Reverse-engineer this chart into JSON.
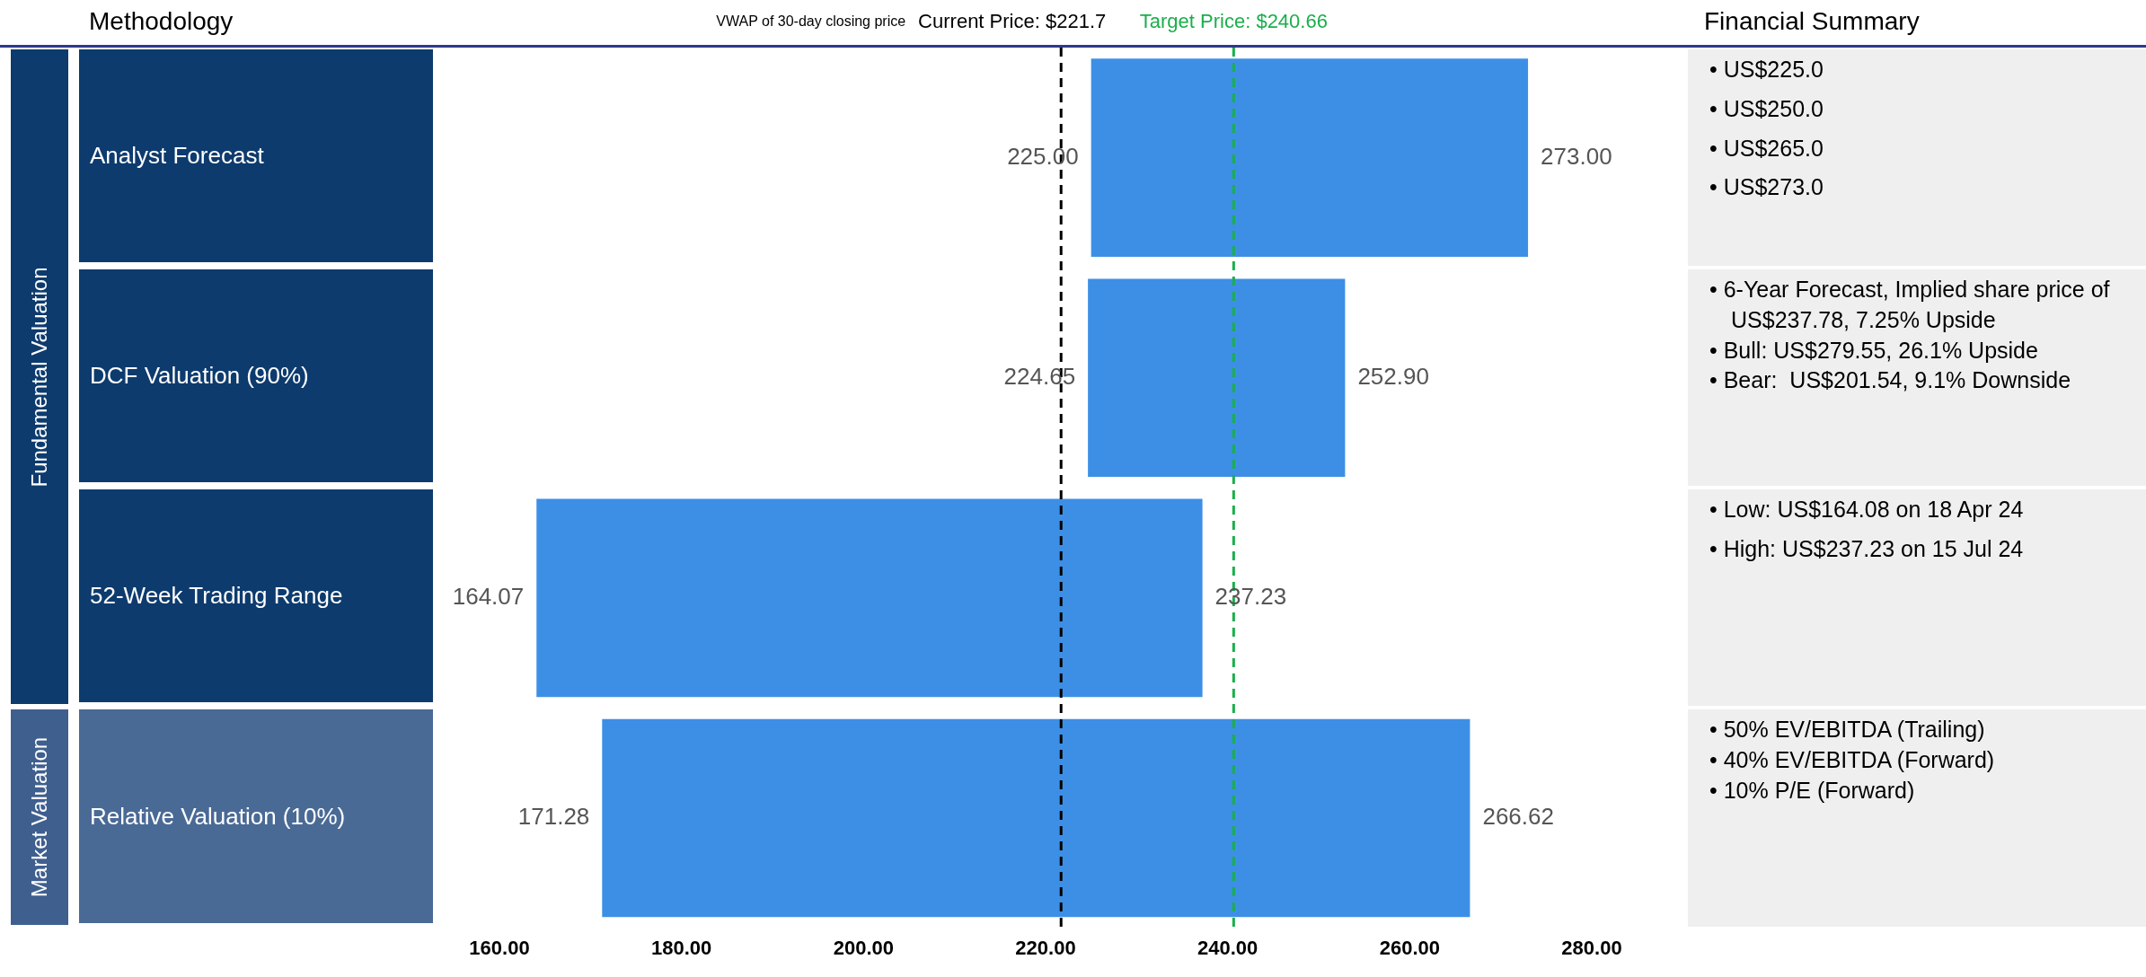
{
  "chart_data": {
    "type": "bar",
    "orientation": "horizontal",
    "categories": [
      "Analyst Forecast",
      "DCF Valuation (90%)",
      "52-Week Trading Range",
      "Relative Valuation (10%)"
    ],
    "base": [
      225.0,
      224.65,
      164.07,
      171.28
    ],
    "values": [
      48.0,
      28.25,
      73.16,
      95.34
    ],
    "value_labels": [
      "273.00",
      "252.90",
      "237.23",
      "266.62"
    ],
    "color": "#3d8fe6",
    "xlim": [
      160,
      280
    ],
    "xticks": [
      {
        "value": 160,
        "label": "160.00"
      },
      {
        "value": 180,
        "label": "180.00"
      },
      {
        "value": 200,
        "label": "200.00"
      },
      {
        "value": 220,
        "label": "220.00"
      },
      {
        "value": 240,
        "label": "240.00"
      },
      {
        "value": 260,
        "label": "260.00"
      },
      {
        "value": 280,
        "label": "280.00"
      }
    ],
    "tick_labels": "x",
    "grid": false,
    "legend": false,
    "ref_lines": [
      {
        "axis": "x",
        "value": 221.7,
        "label": "Current Price: $221.7",
        "color": "#000000",
        "line_style": "dashed"
      },
      {
        "axis": "x",
        "value": 240.66,
        "label": "Target Price: $240.66",
        "color": "#1aaf4b",
        "line_style": "dashed"
      }
    ],
    "annotations": [
      "Methodology",
      "Financial Summary",
      "VWAP of 30-day closing price",
      "Fundamental Valuation",
      "Market Valuation",
      "• US$225.0\n• US$250.0\n• US$265.0\n• US$273.0",
      "• 6-Year Forecast, Implied share price of US$237.78, 7.25% Upside\n• Bull: US$279.55, 26.1% Upside\n• Bear:  US$201.54, 9.1% Downside",
      "• Low: US$164.08 on 18 Apr 24\n• High: US$237.23 on 15 Jul 24",
      "• 50% EV/EBITDA (Trailing)\n• 40% EV/EBITDA (Forward)\n• 10% P/E (Forward)",
      {
        "text": "225.00",
        "x": 225.0,
        "y": "Analyst Forecast"
      },
      {
        "text": "224.65",
        "x": 224.65,
        "y": "DCF Valuation (90%)"
      },
      {
        "text": "164.07",
        "x": 164.07,
        "y": "52-Week Trading Range"
      },
      {
        "text": "171.28",
        "x": 171.28,
        "y": "Relative Valuation (10%)"
      }
    ]
  }
}
